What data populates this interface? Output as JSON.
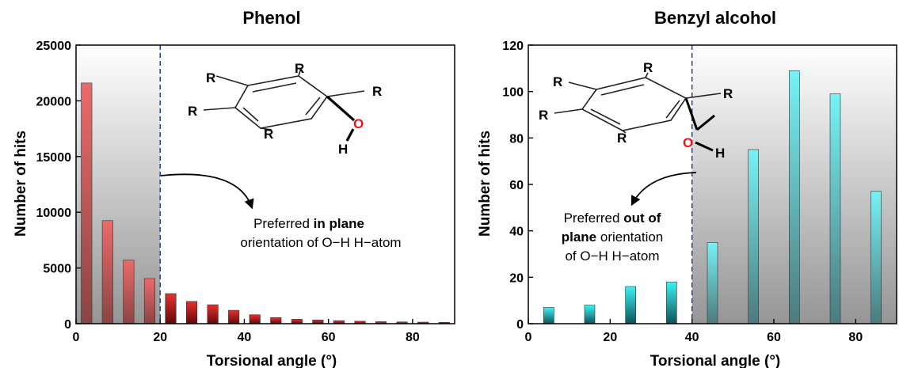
{
  "chart_data": [
    {
      "type": "bar",
      "title": "Phenol",
      "xlabel": "Torsional angle (°)",
      "ylabel": "Number of hits",
      "xlim": [
        0,
        90
      ],
      "ylim": [
        0,
        25000
      ],
      "xticks": [
        0,
        20,
        40,
        60,
        80
      ],
      "yticks": [
        0,
        5000,
        10000,
        15000,
        20000,
        25000
      ],
      "bar_color": "#e01818",
      "threshold_x": 20,
      "shaded_region": [
        0,
        20
      ],
      "x": [
        2.5,
        7.5,
        12.5,
        17.5,
        22.5,
        27.5,
        32.5,
        37.5,
        42.5,
        47.5,
        52.5,
        57.5,
        62.5,
        67.5,
        72.5,
        77.5,
        82.5,
        87.5
      ],
      "values": [
        21600,
        9250,
        5700,
        4050,
        2700,
        2000,
        1700,
        1200,
        800,
        550,
        400,
        330,
        270,
        220,
        180,
        160,
        140,
        120
      ],
      "annotation": {
        "prefix": "Preferred ",
        "bold": "in plane",
        "line2": "orientation of O−H H−atom"
      },
      "molecule": {
        "substituent": "R",
        "oxygen": "O",
        "hydrogen": "H"
      }
    },
    {
      "type": "bar",
      "title": "Benzyl alcohol",
      "xlabel": "Torsional angle (°)",
      "ylabel": "Number of hits",
      "xlim": [
        0,
        90
      ],
      "ylim": [
        0,
        120
      ],
      "xticks": [
        0,
        20,
        40,
        60,
        80
      ],
      "yticks": [
        0,
        20,
        40,
        60,
        80,
        100,
        120
      ],
      "bar_color": "#2ee8f0",
      "threshold_x": 40,
      "shaded_region": [
        40,
        90
      ],
      "x": [
        5,
        15,
        25,
        35,
        45,
        55,
        65,
        75,
        85
      ],
      "values": [
        7,
        8,
        16,
        18,
        35,
        75,
        109,
        99,
        57
      ],
      "annotation": {
        "prefix": "Preferred ",
        "bold": "out of",
        "line2_bold": "plane",
        "line2": " orientation",
        "line3": "of O−H H−atom"
      },
      "molecule": {
        "substituent": "R",
        "oxygen": "O",
        "hydrogen": "H"
      }
    }
  ]
}
